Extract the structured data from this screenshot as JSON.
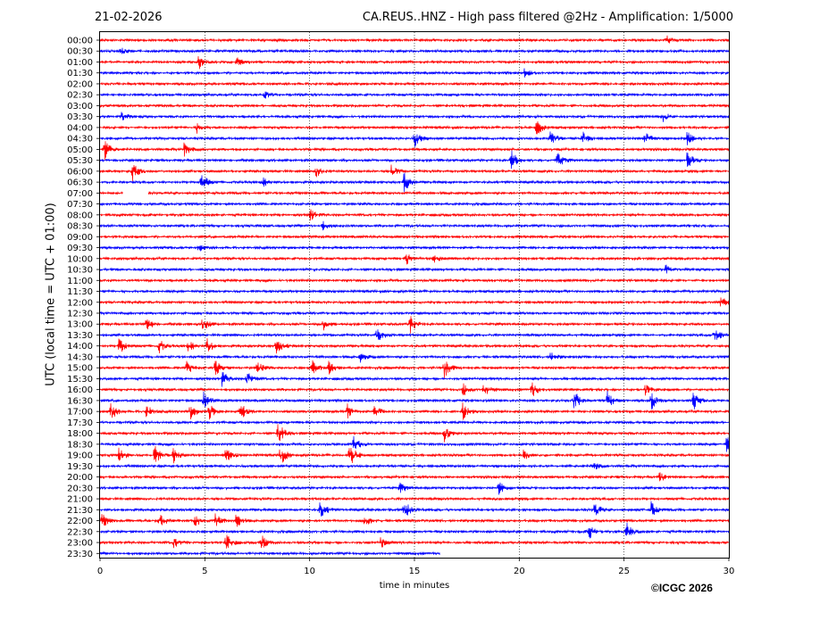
{
  "header": {
    "date": "21-02-2026",
    "title": "CA.REUS..HNZ - High pass filtered @2Hz - Amplification: 1/5000"
  },
  "footer": {
    "copyright": "©ICGC 2026"
  },
  "chart_data": {
    "type": "line",
    "xlabel": "time in minutes",
    "ylabel": "UTC (local time = UTC + 01:00)",
    "xlim": [
      0,
      30
    ],
    "x_ticks": [
      0,
      5,
      10,
      15,
      20,
      25,
      30
    ],
    "row_labels": [
      "00:00",
      "00:30",
      "01:00",
      "01:30",
      "02:00",
      "02:30",
      "03:00",
      "03:30",
      "04:00",
      "04:30",
      "05:00",
      "05:30",
      "06:00",
      "06:30",
      "07:00",
      "07:30",
      "08:00",
      "08:30",
      "09:00",
      "09:30",
      "10:00",
      "10:30",
      "11:00",
      "11:30",
      "12:00",
      "12:30",
      "13:00",
      "13:30",
      "14:00",
      "14:30",
      "15:00",
      "15:30",
      "16:00",
      "16:30",
      "17:00",
      "17:30",
      "18:00",
      "18:30",
      "19:00",
      "19:30",
      "20:00",
      "20:30",
      "21:00",
      "21:30",
      "22:00",
      "22:30",
      "23:00",
      "23:30"
    ],
    "grid": "vertical dotted at every 5 minutes",
    "series_colors": [
      "#ff0000",
      "#0000ff"
    ],
    "gap": {
      "row": "07:00",
      "from_min": 1.1,
      "to_min": 2.3
    },
    "last_row_end_min": 16.2,
    "events": [
      {
        "row": "00:00",
        "min": 27.0,
        "amp": 0.35
      },
      {
        "row": "00:30",
        "min": 1.0,
        "amp": 0.25
      },
      {
        "row": "01:00",
        "min": 4.7,
        "amp": 0.55
      },
      {
        "row": "01:00",
        "min": 6.5,
        "amp": 0.4
      },
      {
        "row": "01:30",
        "min": 20.2,
        "amp": 0.4
      },
      {
        "row": "02:30",
        "min": 7.8,
        "amp": 0.35
      },
      {
        "row": "03:30",
        "min": 1.0,
        "amp": 0.45
      },
      {
        "row": "03:30",
        "min": 26.8,
        "amp": 0.4
      },
      {
        "row": "04:00",
        "min": 20.8,
        "amp": 0.8
      },
      {
        "row": "04:00",
        "min": 4.6,
        "amp": 0.4
      },
      {
        "row": "04:30",
        "min": 15.0,
        "amp": 0.7
      },
      {
        "row": "04:30",
        "min": 21.5,
        "amp": 0.7
      },
      {
        "row": "04:30",
        "min": 23.0,
        "amp": 0.6
      },
      {
        "row": "04:30",
        "min": 26.0,
        "amp": 0.6
      },
      {
        "row": "04:30",
        "min": 28.0,
        "amp": 0.6
      },
      {
        "row": "05:00",
        "min": 0.2,
        "amp": 0.9
      },
      {
        "row": "05:00",
        "min": 4.0,
        "amp": 0.6
      },
      {
        "row": "05:30",
        "min": 19.6,
        "amp": 0.9
      },
      {
        "row": "05:30",
        "min": 21.8,
        "amp": 0.7
      },
      {
        "row": "05:30",
        "min": 28.0,
        "amp": 0.7
      },
      {
        "row": "06:00",
        "min": 1.5,
        "amp": 0.9
      },
      {
        "row": "06:00",
        "min": 10.3,
        "amp": 0.5
      },
      {
        "row": "06:00",
        "min": 13.9,
        "amp": 0.5
      },
      {
        "row": "06:30",
        "min": 4.8,
        "amp": 0.9
      },
      {
        "row": "06:30",
        "min": 14.5,
        "amp": 0.8
      },
      {
        "row": "06:30",
        "min": 7.7,
        "amp": 0.5
      },
      {
        "row": "08:00",
        "min": 10.0,
        "amp": 0.5
      },
      {
        "row": "08:30",
        "min": 10.6,
        "amp": 0.35
      },
      {
        "row": "09:30",
        "min": 4.7,
        "amp": 0.3
      },
      {
        "row": "10:00",
        "min": 14.6,
        "amp": 0.5
      },
      {
        "row": "10:00",
        "min": 15.9,
        "amp": 0.4
      },
      {
        "row": "10:30",
        "min": 27.0,
        "amp": 0.35
      },
      {
        "row": "12:00",
        "min": 29.6,
        "amp": 0.5
      },
      {
        "row": "13:00",
        "min": 2.2,
        "amp": 0.5
      },
      {
        "row": "13:00",
        "min": 4.9,
        "amp": 0.6
      },
      {
        "row": "13:00",
        "min": 10.6,
        "amp": 0.5
      },
      {
        "row": "13:00",
        "min": 14.8,
        "amp": 0.8
      },
      {
        "row": "13:30",
        "min": 13.2,
        "amp": 0.6
      },
      {
        "row": "13:30",
        "min": 29.3,
        "amp": 0.7
      },
      {
        "row": "14:00",
        "min": 0.9,
        "amp": 0.8
      },
      {
        "row": "14:00",
        "min": 2.8,
        "amp": 0.6
      },
      {
        "row": "14:00",
        "min": 4.2,
        "amp": 0.5
      },
      {
        "row": "14:00",
        "min": 5.1,
        "amp": 0.6
      },
      {
        "row": "14:00",
        "min": 8.4,
        "amp": 0.7
      },
      {
        "row": "14:30",
        "min": 12.4,
        "amp": 0.45
      },
      {
        "row": "14:30",
        "min": 21.5,
        "amp": 0.4
      },
      {
        "row": "15:00",
        "min": 4.1,
        "amp": 0.6
      },
      {
        "row": "15:00",
        "min": 5.5,
        "amp": 0.7
      },
      {
        "row": "15:00",
        "min": 7.5,
        "amp": 0.5
      },
      {
        "row": "15:00",
        "min": 10.1,
        "amp": 0.6
      },
      {
        "row": "15:00",
        "min": 10.9,
        "amp": 0.5
      },
      {
        "row": "15:00",
        "min": 16.4,
        "amp": 0.8
      },
      {
        "row": "15:30",
        "min": 5.8,
        "amp": 0.7
      },
      {
        "row": "15:30",
        "min": 7.0,
        "amp": 0.6
      },
      {
        "row": "16:00",
        "min": 17.3,
        "amp": 0.5
      },
      {
        "row": "16:00",
        "min": 18.3,
        "amp": 0.6
      },
      {
        "row": "16:00",
        "min": 20.6,
        "amp": 0.6
      },
      {
        "row": "16:00",
        "min": 26.0,
        "amp": 0.5
      },
      {
        "row": "16:30",
        "min": 4.9,
        "amp": 0.8
      },
      {
        "row": "16:30",
        "min": 22.6,
        "amp": 0.9
      },
      {
        "row": "16:30",
        "min": 24.2,
        "amp": 0.7
      },
      {
        "row": "16:30",
        "min": 26.3,
        "amp": 0.7
      },
      {
        "row": "16:30",
        "min": 28.3,
        "amp": 0.7
      },
      {
        "row": "17:00",
        "min": 0.5,
        "amp": 0.7
      },
      {
        "row": "17:00",
        "min": 2.2,
        "amp": 0.6
      },
      {
        "row": "17:00",
        "min": 4.3,
        "amp": 0.6
      },
      {
        "row": "17:00",
        "min": 5.2,
        "amp": 0.6
      },
      {
        "row": "17:00",
        "min": 6.7,
        "amp": 0.7
      },
      {
        "row": "17:00",
        "min": 11.8,
        "amp": 0.6
      },
      {
        "row": "17:00",
        "min": 13.1,
        "amp": 0.6
      },
      {
        "row": "17:00",
        "min": 17.3,
        "amp": 0.7
      },
      {
        "row": "18:00",
        "min": 8.5,
        "amp": 1.0
      },
      {
        "row": "18:00",
        "min": 16.4,
        "amp": 0.7
      },
      {
        "row": "18:30",
        "min": 12.1,
        "amp": 0.6
      },
      {
        "row": "18:30",
        "min": 29.9,
        "amp": 0.9
      },
      {
        "row": "19:00",
        "min": 0.9,
        "amp": 0.7
      },
      {
        "row": "19:00",
        "min": 2.6,
        "amp": 0.8
      },
      {
        "row": "19:00",
        "min": 3.5,
        "amp": 0.6
      },
      {
        "row": "19:00",
        "min": 6.0,
        "amp": 0.6
      },
      {
        "row": "19:00",
        "min": 8.6,
        "amp": 0.8
      },
      {
        "row": "19:00",
        "min": 11.9,
        "amp": 1.0
      },
      {
        "row": "19:00",
        "min": 20.2,
        "amp": 0.4
      },
      {
        "row": "19:30",
        "min": 23.5,
        "amp": 0.4
      },
      {
        "row": "20:00",
        "min": 26.7,
        "amp": 0.4
      },
      {
        "row": "20:30",
        "min": 14.3,
        "amp": 0.4
      },
      {
        "row": "20:30",
        "min": 19.0,
        "amp": 0.5
      },
      {
        "row": "21:30",
        "min": 10.5,
        "amp": 0.7
      },
      {
        "row": "21:30",
        "min": 14.5,
        "amp": 0.8
      },
      {
        "row": "21:30",
        "min": 23.6,
        "amp": 0.6
      },
      {
        "row": "21:30",
        "min": 26.3,
        "amp": 0.7
      },
      {
        "row": "22:00",
        "min": 0.1,
        "amp": 0.7
      },
      {
        "row": "22:00",
        "min": 2.8,
        "amp": 0.6
      },
      {
        "row": "22:00",
        "min": 4.5,
        "amp": 0.5
      },
      {
        "row": "22:00",
        "min": 5.5,
        "amp": 0.6
      },
      {
        "row": "22:00",
        "min": 6.5,
        "amp": 0.6
      },
      {
        "row": "22:00",
        "min": 12.6,
        "amp": 0.5
      },
      {
        "row": "22:30",
        "min": 23.3,
        "amp": 0.6
      },
      {
        "row": "22:30",
        "min": 25.1,
        "amp": 0.8
      },
      {
        "row": "23:00",
        "min": 3.5,
        "amp": 0.5
      },
      {
        "row": "23:00",
        "min": 6.0,
        "amp": 0.7
      },
      {
        "row": "23:00",
        "min": 7.7,
        "amp": 0.6
      },
      {
        "row": "23:00",
        "min": 13.4,
        "amp": 0.5
      }
    ]
  }
}
